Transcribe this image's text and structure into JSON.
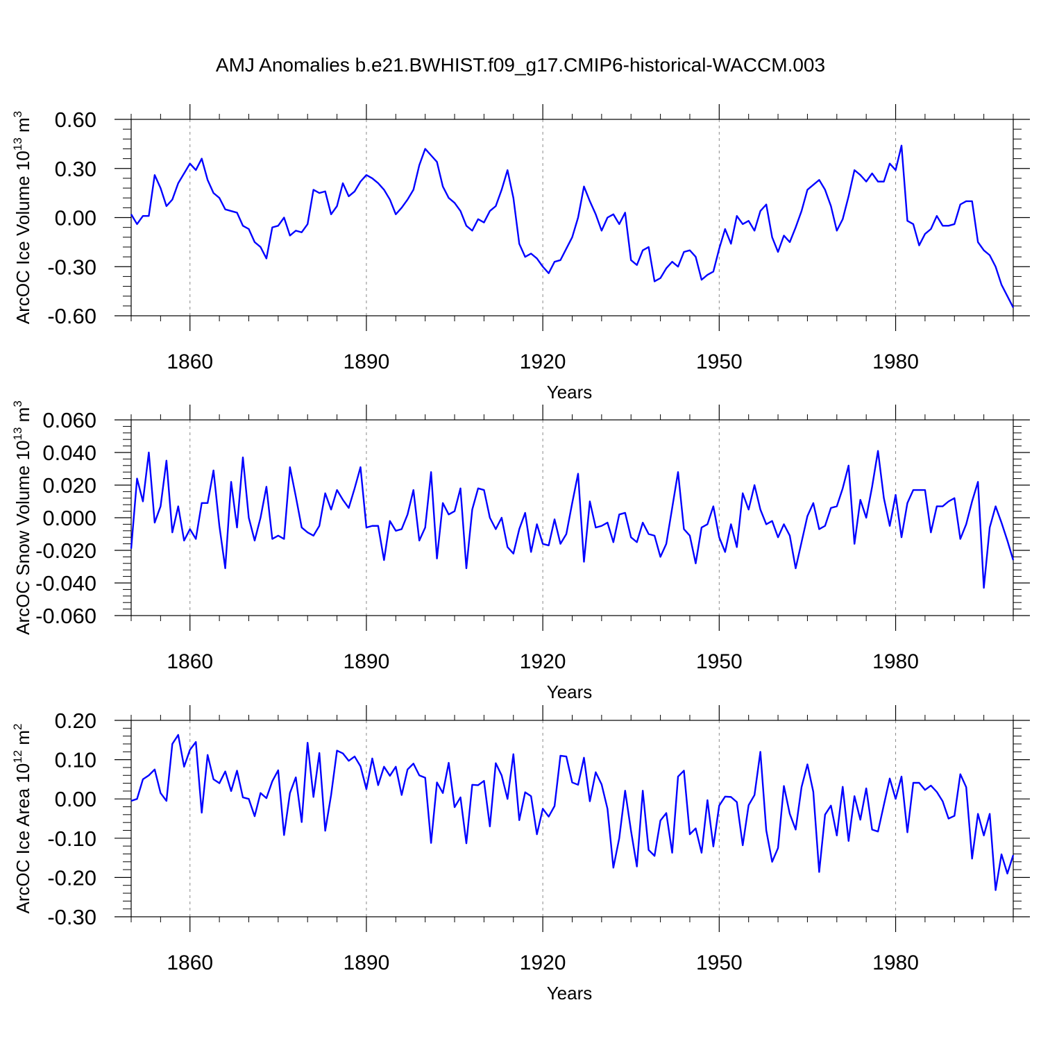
{
  "title": "AMJ Anomalies b.e21.BWHIST.f09_g17.CMIP6-historical-WACCM.003",
  "colors": {
    "series": "#0000ff",
    "axis": "#000000",
    "grid": "#888888"
  },
  "chart_data": [
    {
      "type": "line",
      "ylabel": "ArcOC Ice Volume 10",
      "ylabel_exp": "13",
      "ylabel_unit": " m",
      "ylabel_unit_exp": "3",
      "xlabel": "Years",
      "xlim": [
        1850,
        2000
      ],
      "ylim": [
        -0.6,
        0.6
      ],
      "xticks": [
        1860,
        1890,
        1920,
        1950,
        1980
      ],
      "xtick_labels": [
        "1860",
        "1890",
        "1920",
        "1950",
        "1980"
      ],
      "yticks": [
        -0.6,
        -0.3,
        0.0,
        0.3,
        0.6
      ],
      "ytick_labels": [
        "-0.60",
        "-0.30",
        "0.00",
        "0.30",
        "0.60"
      ],
      "x_start": 1850,
      "series": [
        {
          "name": "ArcOC Ice Volume",
          "values": [
            0.02,
            -0.04,
            0.01,
            0.01,
            0.26,
            0.18,
            0.07,
            0.11,
            0.21,
            0.27,
            0.33,
            0.29,
            0.36,
            0.23,
            0.15,
            0.12,
            0.05,
            0.04,
            0.03,
            -0.05,
            -0.07,
            -0.15,
            -0.18,
            -0.25,
            -0.06,
            -0.05,
            0.0,
            -0.11,
            -0.08,
            -0.09,
            -0.04,
            0.17,
            0.15,
            0.16,
            0.02,
            0.07,
            0.21,
            0.13,
            0.16,
            0.22,
            0.26,
            0.24,
            0.21,
            0.17,
            0.11,
            0.02,
            0.06,
            0.11,
            0.17,
            0.32,
            0.42,
            0.38,
            0.34,
            0.19,
            0.12,
            0.09,
            0.04,
            -0.05,
            -0.08,
            -0.01,
            -0.03,
            0.04,
            0.07,
            0.17,
            0.29,
            0.12,
            -0.16,
            -0.24,
            -0.22,
            -0.25,
            -0.3,
            -0.34,
            -0.27,
            -0.26,
            -0.19,
            -0.12,
            0.0,
            0.19,
            0.1,
            0.02,
            -0.08,
            0.0,
            0.02,
            -0.04,
            0.03,
            -0.26,
            -0.29,
            -0.2,
            -0.18,
            -0.39,
            -0.37,
            -0.31,
            -0.27,
            -0.3,
            -0.21,
            -0.2,
            -0.24,
            -0.38,
            -0.35,
            -0.33,
            -0.19,
            -0.07,
            -0.16,
            0.01,
            -0.04,
            -0.02,
            -0.08,
            0.04,
            0.08,
            -0.12,
            -0.21,
            -0.11,
            -0.15,
            -0.06,
            0.04,
            0.17,
            0.2,
            0.23,
            0.17,
            0.07,
            -0.08,
            -0.01,
            0.13,
            0.29,
            0.26,
            0.22,
            0.27,
            0.22,
            0.22,
            0.33,
            0.29,
            0.44,
            -0.02,
            -0.04,
            -0.17,
            -0.1,
            -0.07,
            0.01,
            -0.05,
            -0.05,
            -0.04,
            0.08,
            0.1,
            0.1,
            -0.15,
            -0.2,
            -0.23,
            -0.3,
            -0.41,
            -0.48,
            -0.55
          ]
        }
      ]
    },
    {
      "type": "line",
      "ylabel": "ArcOC Snow Volume 10",
      "ylabel_exp": "13",
      "ylabel_unit": " m",
      "ylabel_unit_exp": "3",
      "xlabel": "Years",
      "xlim": [
        1850,
        2000
      ],
      "ylim": [
        -0.06,
        0.06
      ],
      "xticks": [
        1860,
        1890,
        1920,
        1950,
        1980
      ],
      "xtick_labels": [
        "1860",
        "1890",
        "1920",
        "1950",
        "1980"
      ],
      "yticks": [
        -0.06,
        -0.04,
        -0.02,
        0.0,
        0.02,
        0.04,
        0.06
      ],
      "ytick_labels": [
        "-0.060",
        "-0.040",
        "-0.020",
        "0.000",
        "0.020",
        "0.040",
        "0.060"
      ],
      "x_start": 1850,
      "series": [
        {
          "name": "ArcOC Snow Volume",
          "values": [
            -0.019,
            0.024,
            0.01,
            0.04,
            -0.003,
            0.007,
            0.035,
            -0.009,
            0.007,
            -0.014,
            -0.007,
            -0.013,
            0.009,
            0.009,
            0.029,
            -0.005,
            -0.031,
            0.022,
            -0.006,
            0.037,
            0.0,
            -0.014,
            0.0,
            0.019,
            -0.013,
            -0.011,
            -0.013,
            0.031,
            0.013,
            -0.006,
            -0.009,
            -0.011,
            -0.005,
            0.015,
            0.005,
            0.017,
            0.011,
            0.006,
            0.018,
            0.031,
            -0.006,
            -0.005,
            -0.005,
            -0.026,
            -0.002,
            -0.008,
            -0.007,
            0.002,
            0.017,
            -0.014,
            -0.006,
            0.028,
            -0.025,
            0.009,
            0.002,
            0.004,
            0.018,
            -0.031,
            0.005,
            0.018,
            0.017,
            0.0,
            -0.007,
            0.0,
            -0.018,
            -0.022,
            -0.007,
            0.003,
            -0.021,
            -0.004,
            -0.016,
            -0.017,
            -0.001,
            -0.016,
            -0.01,
            0.009,
            0.027,
            -0.027,
            0.01,
            -0.006,
            -0.005,
            -0.003,
            -0.015,
            0.002,
            0.003,
            -0.012,
            -0.015,
            -0.003,
            -0.01,
            -0.011,
            -0.024,
            -0.016,
            0.006,
            0.028,
            -0.007,
            -0.011,
            -0.028,
            -0.006,
            -0.004,
            0.007,
            -0.012,
            -0.021,
            -0.004,
            -0.018,
            0.015,
            0.005,
            0.02,
            0.005,
            -0.004,
            -0.002,
            -0.012,
            -0.004,
            -0.011,
            -0.031,
            -0.015,
            0.001,
            0.009,
            -0.007,
            -0.005,
            0.006,
            0.007,
            0.018,
            0.032,
            -0.016,
            0.011,
            0.0,
            0.019,
            0.041,
            0.012,
            -0.005,
            0.014,
            -0.012,
            0.009,
            0.017,
            0.017,
            0.017,
            -0.009,
            0.007,
            0.007,
            0.01,
            0.012,
            -0.013,
            -0.004,
            0.01,
            0.022,
            -0.043,
            -0.006,
            0.007,
            -0.003,
            -0.014,
            -0.026
          ]
        }
      ]
    },
    {
      "type": "line",
      "ylabel": "ArcOC Ice Area 10",
      "ylabel_exp": "12",
      "ylabel_unit": " m",
      "ylabel_unit_exp": "2",
      "xlabel": "Years",
      "xlim": [
        1850,
        2000
      ],
      "ylim": [
        -0.3,
        0.2
      ],
      "xticks": [
        1860,
        1890,
        1920,
        1950,
        1980
      ],
      "xtick_labels": [
        "1860",
        "1890",
        "1920",
        "1950",
        "1980"
      ],
      "yticks": [
        -0.3,
        -0.2,
        -0.1,
        0.0,
        0.1,
        0.2
      ],
      "ytick_labels": [
        "-0.30",
        "-0.20",
        "-0.10",
        "0.00",
        "0.10",
        "0.20"
      ],
      "x_start": 1850,
      "series": [
        {
          "name": "ArcOC Ice Area",
          "values": [
            -0.005,
            0.0,
            0.05,
            0.06,
            0.075,
            0.015,
            -0.005,
            0.14,
            0.163,
            0.082,
            0.125,
            0.145,
            -0.035,
            0.112,
            0.05,
            0.04,
            0.07,
            0.02,
            0.072,
            0.004,
            0.0,
            -0.044,
            0.015,
            0.002,
            0.045,
            0.073,
            -0.092,
            0.015,
            0.055,
            -0.059,
            0.143,
            0.005,
            0.117,
            -0.081,
            0.01,
            0.123,
            0.116,
            0.097,
            0.108,
            0.083,
            0.025,
            0.103,
            0.035,
            0.082,
            0.059,
            0.082,
            0.01,
            0.075,
            0.09,
            0.06,
            0.054,
            -0.112,
            0.042,
            0.015,
            0.092,
            -0.021,
            0.004,
            -0.113,
            0.036,
            0.035,
            0.046,
            -0.07,
            0.091,
            0.06,
            0.0,
            0.114,
            -0.054,
            0.017,
            0.007,
            -0.09,
            -0.025,
            -0.045,
            -0.018,
            0.11,
            0.108,
            0.042,
            0.036,
            0.105,
            -0.006,
            0.068,
            0.037,
            -0.025,
            -0.175,
            -0.1,
            0.021,
            -0.081,
            -0.172,
            0.021,
            -0.13,
            -0.145,
            -0.055,
            -0.036,
            -0.137,
            0.057,
            0.072,
            -0.09,
            -0.075,
            -0.137,
            -0.003,
            -0.121,
            -0.017,
            0.006,
            0.005,
            -0.008,
            -0.118,
            -0.016,
            0.01,
            0.12,
            -0.08,
            -0.16,
            -0.125,
            0.033,
            -0.038,
            -0.078,
            0.03,
            0.088,
            0.018,
            -0.186,
            -0.04,
            -0.017,
            -0.093,
            0.031,
            -0.107,
            0.007,
            -0.053,
            0.027,
            -0.078,
            -0.083,
            -0.015,
            0.052,
            0.0,
            0.057,
            -0.085,
            0.041,
            0.041,
            0.023,
            0.034,
            0.018,
            -0.006,
            -0.05,
            -0.043,
            0.063,
            0.03,
            -0.152,
            -0.038,
            -0.093,
            -0.038,
            -0.232,
            -0.141,
            -0.19,
            -0.143
          ]
        }
      ]
    }
  ]
}
